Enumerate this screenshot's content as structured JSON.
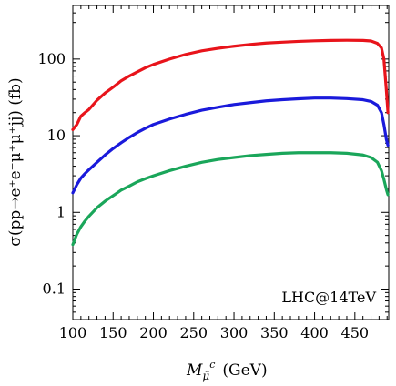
{
  "chart_data": {
    "type": "line",
    "xlabel_main": "M",
    "xlabel_sub": "μ̃",
    "xlabel_sup": "c",
    "xlabel_unit": "(GeV)",
    "ylabel": "σ(pp→e⁺e⁻μ⁺μ⁺jj)  (fb)",
    "annotation": "LHC@14TeV",
    "xlim": [
      100,
      492
    ],
    "ylim": [
      0.04,
      500
    ],
    "yscale": "log",
    "x_ticks": [
      100,
      150,
      200,
      250,
      300,
      350,
      400,
      450
    ],
    "x_tick_labels": [
      "100",
      "150",
      "200",
      "250",
      "300",
      "350",
      "400",
      "450"
    ],
    "y_ticks": [
      0.1,
      1,
      10,
      100
    ],
    "y_tick_labels": [
      "0.1",
      "1",
      "10",
      "100"
    ],
    "series": [
      {
        "color": "#e8141b",
        "x": [
          100,
          105,
          110,
          115,
          120,
          130,
          140,
          150,
          160,
          170,
          180,
          190,
          200,
          220,
          240,
          260,
          280,
          300,
          320,
          340,
          360,
          380,
          400,
          420,
          440,
          460,
          470,
          478,
          483,
          486,
          489,
          491
        ],
        "y": [
          12,
          14,
          18,
          20,
          22,
          29,
          36,
          43,
          52,
          60,
          68,
          77,
          85,
          100,
          115,
          128,
          138,
          147,
          155,
          162,
          166,
          170,
          173,
          175,
          176,
          175,
          172,
          160,
          140,
          100,
          40,
          20
        ]
      },
      {
        "color": "#1a1adb",
        "x": [
          100,
          105,
          110,
          115,
          120,
          130,
          140,
          150,
          160,
          170,
          180,
          190,
          200,
          220,
          240,
          260,
          280,
          300,
          320,
          340,
          360,
          380,
          400,
          420,
          440,
          460,
          470,
          478,
          483,
          486,
          489,
          491
        ],
        "y": [
          1.8,
          2.3,
          2.8,
          3.2,
          3.6,
          4.5,
          5.6,
          6.8,
          8.1,
          9.5,
          11,
          12.5,
          14,
          16.5,
          19,
          21.5,
          23.5,
          25.5,
          27,
          28.5,
          29.5,
          30.3,
          31,
          31,
          30.5,
          29.5,
          28,
          25,
          20,
          14,
          9,
          7.5
        ]
      },
      {
        "color": "#1aa65a",
        "x": [
          100,
          105,
          110,
          115,
          120,
          130,
          140,
          150,
          160,
          170,
          180,
          190,
          200,
          220,
          240,
          260,
          280,
          300,
          320,
          340,
          360,
          380,
          400,
          420,
          440,
          460,
          470,
          478,
          483,
          486,
          489,
          491
        ],
        "y": [
          0.38,
          0.52,
          0.65,
          0.77,
          0.89,
          1.15,
          1.4,
          1.65,
          1.95,
          2.2,
          2.5,
          2.75,
          3.0,
          3.5,
          4.0,
          4.5,
          4.9,
          5.2,
          5.5,
          5.7,
          5.9,
          6.0,
          6.0,
          6.0,
          5.9,
          5.6,
          5.2,
          4.5,
          3.5,
          2.7,
          2.0,
          1.7
        ]
      }
    ]
  }
}
